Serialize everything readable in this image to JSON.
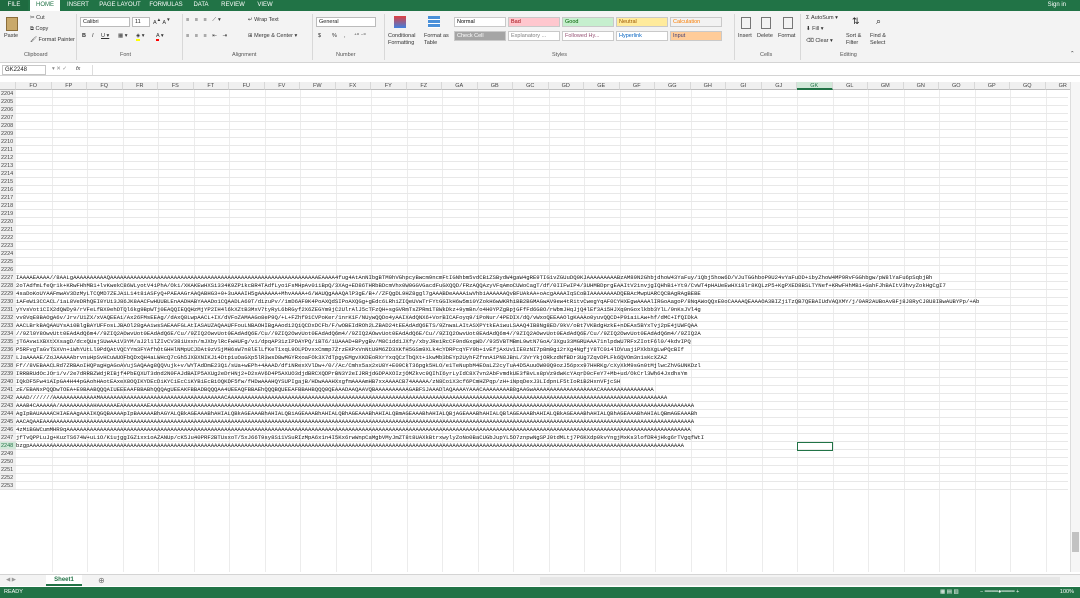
{
  "tabs": [
    "FILE",
    "HOME",
    "INSERT",
    "PAGE LAYOUT",
    "FORMULAS",
    "DATA",
    "REVIEW",
    "VIEW"
  ],
  "active_tab": "HOME",
  "sign_in": "Sign in",
  "clipboard": {
    "paste": "Paste",
    "cut": "Cut",
    "copy": "Copy",
    "format_painter": "Format Painter",
    "label": "Clipboard"
  },
  "font": {
    "name": "Calibri",
    "size": "11",
    "label": "Font"
  },
  "alignment": {
    "wrap_text": "Wrap Text",
    "merge_center": "Merge & Center",
    "label": "Alignment"
  },
  "number": {
    "format": "General",
    "currency": "$",
    "percent": "%",
    "comma": ",",
    "label": "Number"
  },
  "styles": {
    "conditional": "Conditional Formatting",
    "format_as_table": "Format as Table",
    "cells": [
      {
        "label": "Normal",
        "bg": "#ffffff",
        "fg": "#000000"
      },
      {
        "label": "Bad",
        "bg": "#ffc7ce",
        "fg": "#9c0006"
      },
      {
        "label": "Good",
        "bg": "#c6efce",
        "fg": "#006100"
      },
      {
        "label": "Neutral",
        "bg": "#ffeb9c",
        "fg": "#9c5700"
      },
      {
        "label": "Calculation",
        "bg": "#f2f2f2",
        "fg": "#fa7d00"
      },
      {
        "label": "Check Cell",
        "bg": "#a5a5a5",
        "fg": "#ffffff"
      },
      {
        "label": "Explanatory ...",
        "bg": "#ffffff",
        "fg": "#7f7f7f"
      },
      {
        "label": "Followed Hy...",
        "bg": "#ffffff",
        "fg": "#954f72"
      },
      {
        "label": "Hyperlink",
        "bg": "#ffffff",
        "fg": "#0563c1"
      },
      {
        "label": "Input",
        "bg": "#ffcc99",
        "fg": "#3f3f76"
      }
    ],
    "label": "Styles"
  },
  "cells_group": {
    "insert": "Insert",
    "delete": "Delete",
    "format": "Format",
    "label": "Cells"
  },
  "editing": {
    "autosum": "AutoSum",
    "fill": "Fill",
    "clear": "Clear",
    "sort_filter": "Sort & Filter",
    "find_select": "Find & Select",
    "label": "Editing"
  },
  "name_box": "GK2248",
  "formula_fx": "fx",
  "columns": [
    "FO",
    "FP",
    "FQ",
    "FR",
    "FS",
    "FT",
    "FU",
    "FV",
    "FW",
    "FX",
    "FY",
    "FZ",
    "GA",
    "GB",
    "GC",
    "GD",
    "GE",
    "GF",
    "GG",
    "GH",
    "GI",
    "GJ",
    "GK",
    "GL",
    "GM",
    "GN",
    "GO",
    "GP",
    "GQ",
    "GR"
  ],
  "selected_column": "GK",
  "empty_rows_start": 2204,
  "empty_rows_end": 2226,
  "data_rows": [
    {
      "row": "2227",
      "text": "IAAAAEAAAA//8AALgAAAAAAAAAAQAAAAAAAAAAAAAAAAAAAAAAAAAAAAAAAAAAAAAAAAAAAAAAAAAAAAAAAAAAAAAAEAAAA4fug4AtAnNIbgBTM0hVGhpcyBwcm9ncmFtIGNhbm5vdCBiZSBydW4gaW4gRE9TIG1vZGUuDQ0KJAAAAAAAAABzAM89N2GhbjdhoW43YaFuy/1Qbj5how6D/VJuTGGhboP9U24vYaFuDD+ibyZhoW4MP9RvFGGhbgw/pW8lYaFu6pSqbjBh"
    },
    {
      "row": "2228",
      "text": "2oTAdfmLfeQr1k+KRwFHhMB1+lvKwekC86WLyotV4iPhA/Oki/XKAKEwHXSi334K9ZPikcBR4TAdfLyo1FsMHpAv0iiBpQ/3XAg+ED86THRbBDcmVhx0W0GGVGacdFuGXQQD/FRzAQQAzyVFqAmoCUWoCagT/df/0IIFwIP4/3UHMBDprgEAAItV2invjgIQHhB1+Yt9/CvWT4pHAUeEwHXi8lr8KQLzP5+KgPXED8BSLTYNef+KRwFHhMB1+GahFJhBAItV3hvyZokHgCgI7"
    },
    {
      "row": "2229",
      "text": "4saDoKoUYAAFmwAV3DzMyLTCQMD7ZEJAiL14t8iASFyQ+PAEAAGrAAQABHG3+0+3uAAAIH5gAAAAAA+MhvAAAA+6/WAUQgAAAQAlP3gE/B+//ZFQgDL9HZ8ggl7gAAABDeAAAA1wVhbiAAAAAAQvBFUAkAA+oAcgAAAAIqSCoBIAAAAAAAADQEBAcMwpUARCQCBAgRAgBEBE"
    },
    {
      "row": "2230",
      "text": "iAFeW13CCACL/1aL8VeDRhQEI0YUi3J86JK8AACFwHUUBLEnAADHABYAAADo1CQAADLA60T/dizuPv//1mD6AF0K4PoAXQdSIPoAXQGg+gEdc6LRhiZIQeUVwTrFYtGGIkH6w5mi0YZokH6wWKRhiBB2BGMAGwAV9ew4tRitvCwegYqAF0CYHXEgwAAAAlIRGoAagoP/8NqAWoQQxE0oCAAAAQEAAAOA3BIZj1TzQB7QEBAIUdVAQXMY/j/0AR2AUBoAvBFj8J8RyCJ8U8IBwAUBYPp/+Ab"
    },
    {
      "row": "2231",
      "text": "yYvsVot1CIX2dQWDy9/rVFeLfBX9ehDTQl6kg9BpWTj0EAQQIEQQHzMjYP2IH4l6kXZtB3MxV7tyRyL6bRGyf2X6ZEGYm9jC2UlrAlJ5cTFzQH+sgGVRmTsZPRm1T8WkDkz+9ymBn/o4H0YPZgBpjGFfFd6G8O/rWbmJHqJjQ4lEf3Ai5HJXq0nGoxlkbb3YlL/9nKsJVl4g"
    },
    {
      "row": "2232",
      "text": "vv8VqE8BAOgA6v/Jrv/U1ZX/xVAQEEAi/Ax26FMsEEAg//dAxQ8LwpAACL+IX/dVFoZAMAAGo8eP9Q/+L+FZhf91CVPoKer/1nrK1F/NUywQQDo4yAAIXAdQNX6+VorBICAFoyq9/1PoNur/4PEDIX/dQ/vWxoQEEAAOlgKAAAo0yuvQQCD+P91aiLAw+hf/dMC+IfQIDkA"
    },
    {
      "row": "2233",
      "text": "AACLBrkBAQAAUYsAi0BlgBAYUFFosLJBAOl28gAAiwsSAEAAFGLAtIASAUZAQAAUFFouLNBAOHIBgAAodi2QiQCDxDCFb/F/wOBEIdROh2LZBAD24tEEAdAdQ6ETS/9ZnwaLAItASXPYtkEAiwuLSAAQ4IB8Ng8ED/9kV/oBt7VKBdgHzkE+nDEAs5BYxTvj2pE4jUWFQAA"
    },
    {
      "row": "2234",
      "text": "//9Zl0Y8OwvUtt0EAdAdQ6m4//9ZIQ2AOwvUot0EAdAdQ6E/Cu//9ZIQ2OwvUot0EAdAdQ6E/Cu//9ZIQ2OwvUot0EAdAdQ6m4//9ZIQ2AOwvUot0EAdAdQ6E/Cu//9ZIQ2OwvUot0EAdAdQ6m4//9ZIQ2AOwvUot0EAdAdQ6E/Cu//9ZIQ2OwvUot0EAdAdQ6m4//9ZIQ2A"
    },
    {
      "row": "2235",
      "text": "jT6AvwiXBXtXXsagD/dcxQUsjSUwAAiV3YM/aJ2l1lZIvCV38iUxxn/mJXbylRcFwHUFg/vi/dpqAP31zIPDAYPQ/1BT6/1UAAAD+BPygBv/M8CiddiJXfy/xbyJReiRcCF9ndGxgWD//935VBTMBmL9wtN7GoA/3Xgu33MGRUAAA71nlpdwU7RFxZIotF6l0/4kdvIPQ"
    },
    {
      "row": "2236",
      "text": "P5RFvgTaGvTSXVn+iWhYUtLl9PdQAtVQCYYm3FYAfhOtGHHlNMpUCJDAt9zVSjMH6sW7n8lElLfKeT1xqL9OLPDvxxCmmp7ZrzEKPxVnNtU9M6ZD3XKfH5GSm9XLk4cYDRPcqYFY9b+ivEfjAxUv1IE0zNI7p8m9gi2rXg4NgfjY8TC0i4lDVuajiPXkbXgLwPQcBIf"
    },
    {
      "row": "2237",
      "text": "LJaAAAAE/ZoJAAAAAbrvnuHpSvHCuWUOFbQDxQH4aLWHcQ7cGh5JX8XNIKJi4Dtp1uOaGXp5lR3wsD8wMGYRxoaFOk3X7dTpgyEMgvXKDEoRXrYxqQCzTbQXt+1kwMb3bEYp2UyhFZfnnA1PN8JBnL/3VrYkjORkzdNfBDr3Ug7ZqvDPLFk6QVOm3n1sKcXZAZ"
    },
    {
      "row": "2238",
      "text": "Ff//8VEBAACLRd7ZRBAoIHQPagHgAGoAVujSAQAAg8QQVujk+v/WYTAdDmE23Qi/sUa+wEPh+4AAAD/dfiNRexXVlDw+/0//Ac/Cmhx5ax2xU8Y+E09CkT36pgk5HLO/e1TeNupbM4EOaLZ2cyTuA4D5AuuOW00Q9ozJ56pxx97HHRKg/cXyXkM9sGn0tMjlwcZhVGUNKDzl"
    },
    {
      "row": "2239",
      "text": "IRRBRUdOcJOr1/v/2e7dRRBZWdjRIBjf4PbEQXUT3dnd2N0FAJdBAIP5AXUg2eDrHNj2+D2xAV6D4P5AXUO3djdBRCXQDPrBN3Y2eIJRRjdGDPAXOIzjOMZkvc9QIhI6yrLyIdC8X7vn2AbFvmdkUE3fBvLs8pVz9dwKcYAqrD0cFeY7+Mb+ud/OkCrl3Wh64JxdhsYm"
    },
    {
      "row": "2240",
      "text": "IQkDF5Fw41AIpGA4H44pGAohHAotEAxeX8OQIKYDEcDiKYCiEcCiKYBiEcBiOQKDF5fw/fHDwAAAHQYSUPIgajB/HDwAAAHXxgfmAAAAmHB7xxAAAACB74AAAAA/zN8Co1X3cf6PCmHZPqp/zH+iNpqDexJ3LIdpnLF5tIoRiB2HxnVFjcSH"
    },
    {
      "row": "2241",
      "text": "zE/EBANxPQQDwTOEA+E9BAABQQQAIUEEEAAFBBABhQQQAgUEEAKFBBADBQQQAA4UEEAQFBBAEhQQQBQUEEAFBBAHBQQQ0QEAAADAAQAAVQBAAAAAAAAAAGABFSJAAADlAQAAAAYAAACAAAAAAAAB8gAAGwAAAAAAAAAAAAAAAAAAACAAAAAAAAAAAAAAAA"
    },
    {
      "row": "2242",
      "text": "AAAD///////AAAAAAAAAAAAAMAAAAAAAAAAAAAAAAAAAAAAAAAAAAAAAAAAAAACAAAAAAAAAAAAAAAAAAAAAAAAAAAAAAAAAAAAAAAAAAAAAAAAAAAAAAAAAAAAAAAAAAAAAAAAAAAAAAAAAAAAAAAAAAAAAAAAAAAAAAAAAAAAAAAAAAAAAAAAAAAAAAAAAAA"
    },
    {
      "row": "2243",
      "text": "AAAB4CAAAAAA/AAAAAAAAAAHAAAAAAEAAAAAAAAEAAAAAAAAAAAAAAAAAAAAAAAAAAAAAAAAAAAAAAAAAAAAAAAAAAAAAAAAAAAAAAAAAAAAAAAAAAAAAAAAAAAAAAAAAAAAAAAAAAAAAAAAAAAAAAAAAAAAAAAAAAAAAAAAAAAAAAAAAAAAAAAAAAAAAAAAAAAAAAAAAA"
    },
    {
      "row": "2244",
      "text": "AgIpBAUAAAACHIAEAAgAAAIKQGQBAAAApIpBAAAAABhAGYALQBkAGEAAABhAHIALQBkAGEAAABhAHIALQBiAGEAAABhAHIALQBhAGEAAABhAHIALQBmAGEAAABhAHIALQBjAGEAAABhAHIALQBlAGEAAABhAHIALQBkAGEAAABhAHIALQBhAGEAAABhAHIALQBmAGEAAABh"
    },
    {
      "row": "2245",
      "text": "AACAQAAEAAAAAAAAAAAAAAAAAAAAAAAAAAAAAAAAAAAAAAAAAAAAAAAAAAAAAAAAAAAAAAAAAAAAAAAAAAAAAAAAAAAAAAAAAAAAAAAAAAAAAAAAAAAAAAAAAAAAAAAAAAAAAAAAAAAAAAAAAAAAAAAAAAAAAAAAAAAAAAAAAAAAAAAAAAAAAAAAAAAAAAAAAAAAAAAAAA"
    },
    {
      "row": "2246",
      "text": "4zMiBGWCumMHR9qAAAAAAAAAAAAAAAAAAAAAAAAAAAAAAAAAAAAAAAAAAAAAAAAAAAAAAAAAAAAAAAAAAAAAAAAAAAAAAAAAAAAAAAAAAAAAAAAAAAAAAAAAAAAAAAAAAAAAAAAAAAAAAAAAAAAAAAAAAAAAAAAAAAAAAAAAAAAAAAAAAAAAAAAAAAAAAAAAAAAAAAAAA"
    },
    {
      "row": "2247",
      "text": "jfTvQPPLuJg+KuzTS674W+uL1O/K1ujggIGZixx1oAZANUp/cK5Ju40PRF2BTUsxoT/5xJ66T9sy8S11VSuRIzMpA6x1n4I5Kx6rwWnpCaMgbVMyJmZT8t8UAXkBtrxwylyZoNo0BaCUGbJupYL5O7znpwNgSPJ0tdMLtj7P6KXdp0kvYngjMxKs3lofDR4jHkg6rTVgqfWtI"
    },
    {
      "row": "2248",
      "text": "bzgpAAAAAAAAAAAAAAAAAAAAAAAAAAAAAAAAAAAAAAAAAAAAAAAAAAAAAAAAAAAAAAAAAAAAAAAAAAAAAAAAAAAAAAAAAAAAAAAAAAAAAAAAAAAAAAAAAAAAAAAAAAAAAAAAAAAAAAAAAAAAAAAAAAAAAAAAAAAAAAAAAAAAAAAAAAAAAAAAAAAAAAAAAAAAAAAAAAA"
    }
  ],
  "after_rows": [
    "2249",
    "2250",
    "2251",
    "2252",
    "2253"
  ],
  "sheet_tab": "Sheet1",
  "status": "READY",
  "zoom": "100%"
}
